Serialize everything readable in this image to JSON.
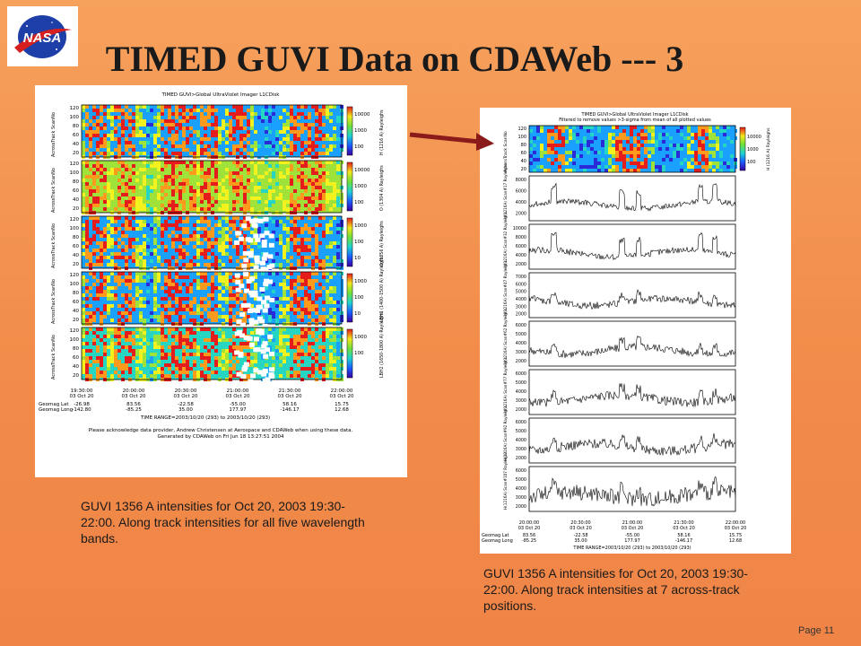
{
  "slide": {
    "title": "TIMED GUVI Data on CDAWeb  --- 3",
    "page_label": "Page 11",
    "logo_text": "NASA"
  },
  "figure_left": {
    "header": "TIMED  GUVI>Global UltraViolet Imager  L1CDisk",
    "y_ticks": [
      "120",
      "100",
      "80",
      "60",
      "40",
      "20"
    ],
    "panels": [
      {
        "ylabel": "AcrossTrack ScanNo",
        "colorbar_ticks": [
          "10000",
          "1000",
          "100"
        ],
        "cb_label": "H (1216 A) Rayleighs"
      },
      {
        "ylabel": "AcrossTrack ScanNo",
        "colorbar_ticks": [
          "10000",
          "1000",
          "100"
        ],
        "cb_label": "O (1304 A) Rayleighs"
      },
      {
        "ylabel": "AcrossTrack ScanNo",
        "colorbar_ticks": [
          "1000",
          "100",
          "10"
        ],
        "cb_label": "O (1356 A) Rayleighs"
      },
      {
        "ylabel": "AcrossTrack ScanNo",
        "colorbar_ticks": [
          "1000",
          "100",
          "10"
        ],
        "cb_label": "LBH1 (1400-1500 A) Rayleighs"
      },
      {
        "ylabel": "AcrossTrack ScanNo",
        "colorbar_ticks": [
          "1000",
          "100"
        ],
        "cb_label": "LBH2 (1650-1800 A) Rayleighs"
      }
    ],
    "x_ticks": [
      {
        "time": "19:30:00",
        "date": "03 Oct 20"
      },
      {
        "time": "20:00:00",
        "date": "03 Oct 20"
      },
      {
        "time": "20:30:00",
        "date": "03 Oct 20"
      },
      {
        "time": "21:00:00",
        "date": "03 Oct 20"
      },
      {
        "time": "21:30:00",
        "date": "03 Oct 20"
      },
      {
        "time": "22:00:00",
        "date": "03 Oct 20"
      }
    ],
    "geomag_lat_label": "Geomag Lat",
    "geomag_long_label": "Geomag Long",
    "geomag_lat": [
      "-26.98",
      "83.56",
      "-22.58",
      "-55.00",
      "58.16",
      "15.75"
    ],
    "geomag_long": [
      "-142.80",
      "-85.25",
      "35.00",
      "177.97",
      "-146.17",
      "12.68"
    ],
    "time_range": "TIME RANGE=2003/10/20 (293) to 2003/10/20 (293)",
    "acknowledgment": "Please acknowledge data provider, Andrew Christensen at Aerospace and CDAWeb when using these data.",
    "generated": "Generated by CDAWeb on Fri Jun 18 13:27:51 2004"
  },
  "figure_right": {
    "header_line1": "TIMED  GUVI>Global UltraViolet Imager  L1CDisk",
    "header_line2": "Filtered to remove values >3-sigma from mean of all plotted values",
    "spectrogram_ylabel": "AcrossTrack ScanNo",
    "spectrogram_y_ticks": [
      "120",
      "100",
      "80",
      "60",
      "40",
      "20"
    ],
    "spectrogram_colorbar_ticks": [
      "10000",
      "1000",
      "100"
    ],
    "spectrogram_cb_label": "H (1216 A) Rayleighs",
    "line_panels": [
      {
        "ylabel": "H(1216A) Scan#17 Rayleighs",
        "ticks": [
          "8000",
          "6000",
          "4000",
          "2000"
        ]
      },
      {
        "ylabel": "H(1216A) Scan#32 Rayleighs",
        "ticks": [
          "10000",
          "8000",
          "6000",
          "4000",
          "2000"
        ]
      },
      {
        "ylabel": "H(1216A) Scan#47 Rayleighs",
        "ticks": [
          "7000",
          "6000",
          "5000",
          "4000",
          "3000",
          "2000"
        ]
      },
      {
        "ylabel": "H(1216A) Scan#62 Rayleighs",
        "ticks": [
          "6000",
          "5000",
          "4000",
          "3000",
          "2000"
        ]
      },
      {
        "ylabel": "H(1216A) Scan#77 Rayleighs",
        "ticks": [
          "6000",
          "5000",
          "4000",
          "3000",
          "2000"
        ]
      },
      {
        "ylabel": "H(1216A) Scan#92 Rayleighs",
        "ticks": [
          "6000",
          "5000",
          "4000",
          "3000",
          "2000"
        ]
      },
      {
        "ylabel": "H(1216A) Scan#107 Rayleighs",
        "ticks": [
          "6000",
          "5000",
          "4000",
          "3000",
          "2000"
        ]
      }
    ],
    "x_ticks": [
      {
        "time": "20:00:00",
        "date": "03 Oct 20"
      },
      {
        "time": "20:30:00",
        "date": "03 Oct 20"
      },
      {
        "time": "21:00:00",
        "date": "03 Oct 20"
      },
      {
        "time": "21:30:00",
        "date": "03 Oct 20"
      },
      {
        "time": "22:00:00",
        "date": "03 Oct 20"
      }
    ],
    "geomag_lat_label": "Geomag Lat",
    "geomag_long_label": "Geomag Long",
    "geomag_lat": [
      "83.56",
      "-22.58",
      "-55.00",
      "58.16",
      "15.75"
    ],
    "geomag_long": [
      "-85.25",
      "35.00",
      "177.97",
      "-146.17",
      "12.68"
    ],
    "time_range": "TIME RANGE=2003/10/20 (293) to 2003/10/20 (293)"
  },
  "caption_left": "GUVI 1356 A intensities for Oct 20, 2003 19:30-22:00.  Along track intensities for all five wavelength bands.",
  "caption_right": "GUVI 1356 A intensities for Oct 20, 2003 19:30-22:00.  Along track intensities at 7 across-track positions.",
  "arrow_color": "#8b1a1a",
  "spectrum_colors": [
    "#2a2ad8",
    "#1aa0ff",
    "#27d6c2",
    "#9fe23a",
    "#f4f21e",
    "#ff9a1c",
    "#e51c1c"
  ]
}
